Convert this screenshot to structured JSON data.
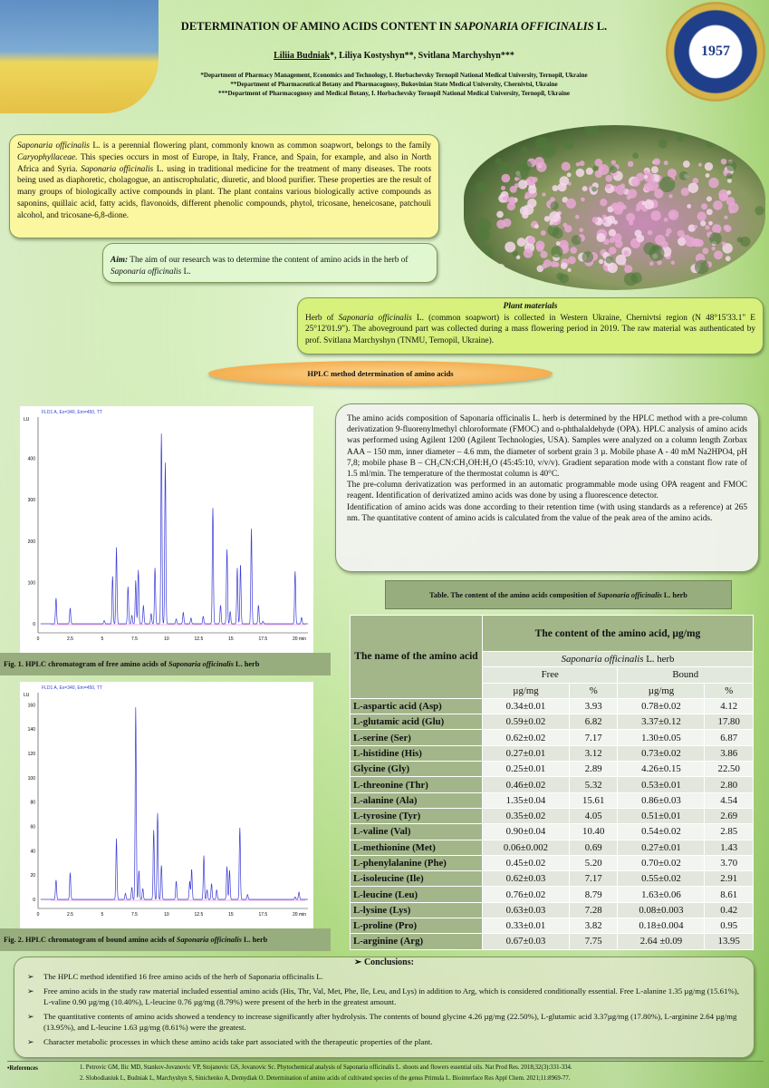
{
  "header": {
    "title": "DETERMINATION OF AMINO ACIDS CONTENT IN ",
    "title_italic": "SAPONARIA OFFICINALIS",
    "title_end": " L.",
    "author_main": "Liliia Budniak",
    "authors_rest": "*, Liliya Kostyshyn**, Svitlana Marchyshyn***",
    "affiliations": [
      "*Department of Pharmacy Management, Economics and Technology, I. Horbachevsky Ternopil National Medical University, Ternopil, Ukraine",
      "**Department of Pharmaceutical Botany and Pharmacognosy, Bukovinian State Medical University, Chernivtsi, Ukraine",
      "***Department of Pharmacognosy and Medical Botany, I. Horbachevsky Ternopil National Medical University, Ternopil, Ukraine"
    ],
    "logo_text": "1957"
  },
  "intro": {
    "s1": "Saponaria officinalis",
    "t1": " L. is a perennial flowering plant, commonly known as common soapwort, belongs to the family ",
    "s2": "Caryophyllaceae",
    "t2": ". This species occurs in most of Europe, in Italy, France, and Spain, for example, and also in North Africa and Syria. ",
    "s3": "Saponaria officinalis",
    "t3": " L. using in traditional medicine for the treatment of many diseases. The roots being used as diaphoretic, cholagogue, an antiscrophulatic, diuretic, and blood purifier. These properties are the result of many groups of biologically active compounds in plant. The plant contains various biologically active compounds as saponins, quillaic acid, fatty acids, flavonoids, different phenolic compounds, phytol, tricosane, heneicosane, patchouli alcohol, and tricosane-6,8-dione."
  },
  "aim": {
    "label": "Aim:",
    "text": " The aim of our research was to determine the content of amino acids in the herb of ",
    "species": "Saponaria officinalis",
    "end": " L."
  },
  "plant_materials": {
    "title": "Plant materials",
    "t1": "Herb of ",
    "species": "Saponaria officinalis",
    "t2": " L. (common soapwort) is collected in Western Ukraine, Chernivtsi region (N 48°15'33.1\" E 25°12'01.9\"). The aboveground part was collected during a mass flowering period in 2019. The raw material was authenticated by prof. Svitlana Marchyshyn (TNMU, Ternopil, Ukraine)."
  },
  "hplc_banner": "HPLC method determination of amino acids",
  "method": {
    "paragraphs": [
      "The amino acids composition of Saponaria officinalis L. herb is determined by the HPLC method with a pre-column derivatization 9-fluorenylmethyl chloroformate (FMOC) and o-phthalaldehyde (OPA). HPLC analysis of amino acids was performed using Agilent 1200 (Agilent Technologies, USA). Samples were analyzed on a column length Zorbax AAA – 150 mm, inner diameter – 4.6 mm, the diameter of sorbent grain 3 µ. Mobile phase A - 40 mM Na2HPO4, pH 7,8; mobile phase B – CH₃CN:CH₃OH:H₂O (45:45:10, v/v/v). Gradient separation mode with a constant flow rate of 1.5 ml/min. The temperature of the thermostat column is 40°C.",
      "The pre-column derivatization was performed in an automatic programmable mode using OPA reagent and FMOC reagent. Identification of derivatized amino acids was done by using a fluorescence detector.",
      "Identification of amino acids was done according to their retention time (with using standards as a reference) at 265 nm. The quantitative content of amino acids is calculated from the value of the peak area of the amino acids."
    ]
  },
  "figures": [
    {
      "caption": "Fig. 1. HPLC chromatogram of free amino acids of ",
      "species": "Saponaria  officinalis",
      "caption_end": " L. herb",
      "signal_label": "FLD1 A, Ex=340, Em=450, TT",
      "yunit": "LU",
      "xunit": "min",
      "xticks": [
        "0",
        "2.5",
        "5",
        "7.5",
        "10",
        "12.5",
        "15",
        "17.5",
        "20"
      ],
      "yticks": [
        "0",
        "100",
        "200",
        "300",
        "400"
      ],
      "ymax": 500,
      "peaks": [
        [
          1.4,
          62
        ],
        [
          2.5,
          38
        ],
        [
          5.15,
          8
        ],
        [
          5.8,
          115
        ],
        [
          6.1,
          185
        ],
        [
          7.0,
          90
        ],
        [
          7.3,
          20
        ],
        [
          7.6,
          105
        ],
        [
          7.8,
          130
        ],
        [
          8.2,
          45
        ],
        [
          8.8,
          25
        ],
        [
          9.1,
          135
        ],
        [
          9.6,
          460
        ],
        [
          9.9,
          390
        ],
        [
          10.75,
          12
        ],
        [
          11.3,
          28
        ],
        [
          11.9,
          14
        ],
        [
          12.85,
          18
        ],
        [
          13.6,
          280
        ],
        [
          14.2,
          45
        ],
        [
          14.7,
          180
        ],
        [
          14.95,
          30
        ],
        [
          15.5,
          135
        ],
        [
          15.75,
          145
        ],
        [
          16.6,
          230
        ],
        [
          17.15,
          45
        ],
        [
          17.5,
          6
        ],
        [
          20.0,
          127
        ],
        [
          20.5,
          15
        ]
      ]
    },
    {
      "caption": "Fig. 2. HPLC chromatogram of bound amino acids of ",
      "species": "Saponaria  officinalis",
      "caption_end": " L. herb",
      "signal_label": "FLD1 A, Ex=340, Em=450, TT",
      "yunit": "LU",
      "xunit": "min",
      "xticks": [
        "0",
        "2.5",
        "5",
        "7.5",
        "10",
        "12.5",
        "15",
        "17.5",
        "20"
      ],
      "yticks": [
        "0",
        "20",
        "40",
        "60",
        "80",
        "100",
        "120",
        "140",
        "160"
      ],
      "ymax": 170,
      "peaks": [
        [
          1.4,
          16
        ],
        [
          2.5,
          22
        ],
        [
          6.1,
          50
        ],
        [
          6.8,
          5
        ],
        [
          7.3,
          10
        ],
        [
          7.6,
          158
        ],
        [
          7.85,
          24
        ],
        [
          8.15,
          9
        ],
        [
          9.0,
          57
        ],
        [
          9.3,
          71
        ],
        [
          9.6,
          28
        ],
        [
          10.75,
          15
        ],
        [
          11.8,
          15
        ],
        [
          11.95,
          25
        ],
        [
          12.9,
          36
        ],
        [
          13.15,
          8
        ],
        [
          13.5,
          13
        ],
        [
          13.9,
          8
        ],
        [
          14.7,
          27
        ],
        [
          14.9,
          24
        ],
        [
          15.7,
          59
        ],
        [
          16.3,
          4
        ],
        [
          20.0,
          2
        ],
        [
          20.3,
          6
        ]
      ]
    }
  ],
  "table": {
    "caption": "Table. The content of the amino acids composition of ",
    "caption_species": "Saponaria  officinalis",
    "caption_end": " L. herb",
    "name_header": "The name of the amino acid",
    "content_header": "The content of the amino acid, µg/mg",
    "species_header": "Saponaria officinalis",
    "species_end": " L. herb",
    "free": "Free",
    "bound": "Bound",
    "unit": "µg/mg",
    "percent": "%",
    "rows": [
      [
        "L-aspartic acid (Asp)",
        "0.34±0.01",
        "3.93",
        "0.78±0.02",
        "4.12"
      ],
      [
        "L-glutamic acid (Glu)",
        "0.59±0.02",
        "6.82",
        "3.37±0.12",
        "17.80"
      ],
      [
        "L-serine (Ser)",
        "0.62±0.02",
        "7.17",
        "1.30±0.05",
        "6.87"
      ],
      [
        "L-histidine (His)",
        "0.27±0.01",
        "3.12",
        "0.73±0.02",
        "3.86"
      ],
      [
        "Glycine (Gly)",
        "0.25±0.01",
        "2.89",
        "4.26±0.15",
        "22.50"
      ],
      [
        "L-threonine (Thr)",
        "0.46±0.02",
        "5.32",
        "0.53±0.01",
        "2.80"
      ],
      [
        "L-alanine (Ala)",
        "1.35±0.04",
        "15.61",
        "0.86±0.03",
        "4.54"
      ],
      [
        "L-tyrosine (Tyr)",
        "0.35±0.02",
        "4.05",
        "0.51±0.01",
        "2.69"
      ],
      [
        "L-valine (Val)",
        "0.90±0.04",
        "10.40",
        "0.54±0.02",
        "2.85"
      ],
      [
        "L-methionine (Met)",
        "0.06±0.002",
        "0.69",
        "0.27±0.01",
        "1.43"
      ],
      [
        "L-phenylalanine (Phe)",
        "0.45±0.02",
        "5.20",
        "0.70±0.02",
        "3.70"
      ],
      [
        "L-isoleucine (Ile)",
        "0.62±0.03",
        "7.17",
        "0.55±0.02",
        "2.91"
      ],
      [
        "L-leucine (Leu)",
        "0.76±0.02",
        "8.79",
        "1.63±0.06",
        "8.61"
      ],
      [
        "L-lysine (Lys)",
        "0.63±0.03",
        "7.28",
        "0.08±0.003",
        "0.42"
      ],
      [
        "L-proline (Pro)",
        "0.33±0.01",
        "3.82",
        "0.18±0.004",
        "0.95"
      ],
      [
        "L-arginine (Arg)",
        "0.67±0.03",
        "7.75",
        "2.64 ±0.09",
        "13.95"
      ]
    ]
  },
  "conclusions": {
    "title": "Conclusions:",
    "items": [
      "The HPLC method identified 16 free amino acids of the herb of Saponaria officinalis L.",
      "Free amino acids in the study raw material included essential amino acids (His, Thr, Val, Met, Phe, Ile, Leu, and Lys) in addition to Arg, which is considered conditionally essential. Free L-alanine 1.35 µg/mg (15.61%), L-valine 0.90 µg/mg (10.40%), L-leucine 0.76 µg/mg (8.79%) were present of the herb in the greatest amount.",
      "The quantitative contents of amino acids showed a tendency to increase significantly after hydrolysis. The contents of bound glycine 4.26 µg/mg (22.50%), L-glutamic acid 3.37µg/mg (17.80%), L-arginine 2.64 µg/mg (13.95%), and L-leucine 1.63 µg/mg (8.61%) were the greatest.",
      "Character metabolic processes in which these amino acids take part associated with the therapeutic properties of the plant."
    ]
  },
  "references": {
    "label": "•References",
    "items": [
      "1. Petrovic GM, Ilic MD, Stankov-Jovanovic VP, Stojanovic GS, Jovanovic Sc. Phytochemical analysis of Saponaria officinalis L. shoots and flowers essential oils. Nat Prod Res. 2018;32(3):331-334.",
      "2. Slobodianiuk L, Budniak L, Marchyshyn S, Sinichenko A, Demydiak O. Determination of amino acids of cultivated species of the genus Primula L. Biointerface Res Appl Chem. 2021;11:8969-77."
    ]
  },
  "colors": {
    "intro_bg": "#fbf6a0",
    "aim_bg": "#e0f7d0",
    "plant_bg": "#d8f07c",
    "banner": "#f2a03a",
    "table_header": "#a3b68a",
    "trace": "#3b3bd6",
    "baseline": "#e060c0"
  }
}
